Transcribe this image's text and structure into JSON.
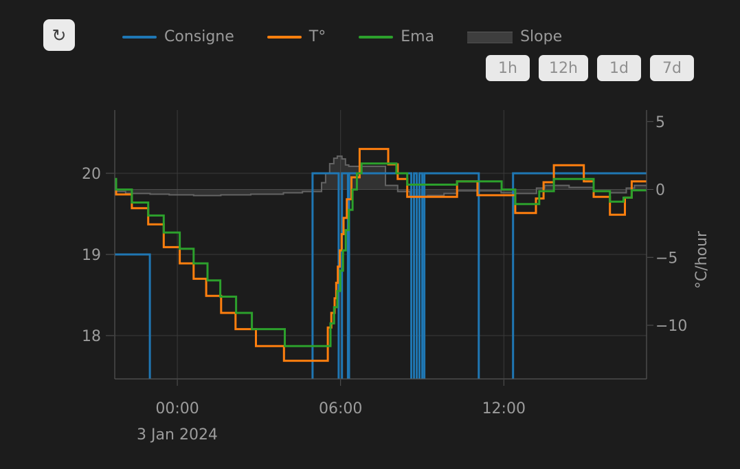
{
  "toolbar": {
    "refresh_icon": "↻"
  },
  "legend": {
    "items": [
      {
        "label": "Consigne",
        "color": "#1f77b4",
        "swatch": "line"
      },
      {
        "label": "T°",
        "color": "#ff7f0e",
        "swatch": "line"
      },
      {
        "label": "Ema",
        "color": "#2ca02c",
        "swatch": "line"
      },
      {
        "label": "Slope",
        "color": "#3e3e3e",
        "swatch": "area"
      }
    ]
  },
  "range_buttons": [
    "1h",
    "12h",
    "1d",
    "7d"
  ],
  "colors": {
    "background": "#1c1c1c",
    "gridline": "#3a3a3a",
    "axis_line": "#565656",
    "tick_text": "#9c9c9c",
    "zeroline": "#454545"
  },
  "chart_data": {
    "type": "line",
    "line_shape": "step-after",
    "x_axis": {
      "t_start": -2.3,
      "t_end": 17.25,
      "ticks": [
        {
          "t": 0,
          "label": "00:00"
        },
        {
          "t": 6,
          "label": "06:00"
        },
        {
          "t": 12,
          "label": "12:00"
        }
      ],
      "date_label": "3 Jan 2024"
    },
    "y_left": {
      "range": [
        17.45,
        20.78
      ],
      "ticks": [
        {
          "v": 20,
          "label": "20"
        },
        {
          "v": 19,
          "label": "19"
        },
        {
          "v": 18,
          "label": "18"
        }
      ]
    },
    "y_right": {
      "title": "°C/hour",
      "range": [
        -13.9,
        5.85
      ],
      "ticks": [
        {
          "v": 5,
          "label": "5"
        },
        {
          "v": 0,
          "label": "0"
        },
        {
          "v": -5,
          "label": "−5"
        },
        {
          "v": -10,
          "label": "−10"
        }
      ]
    },
    "series": [
      {
        "name": "Consigne",
        "color": "#1f77b4",
        "axis": "temp",
        "width": 3,
        "points": [
          [
            -2.3,
            19
          ],
          [
            -1.01,
            17.2
          ],
          [
            4.97,
            20
          ],
          [
            5.93,
            17.2
          ],
          [
            6.05,
            20
          ],
          [
            6.27,
            17.2
          ],
          [
            6.31,
            20
          ],
          [
            8.6,
            17.2
          ],
          [
            8.7,
            20
          ],
          [
            8.8,
            17.2
          ],
          [
            8.9,
            20
          ],
          [
            9.0,
            17.2
          ],
          [
            9.08,
            20
          ],
          [
            11.08,
            17.2
          ],
          [
            12.34,
            20
          ]
        ]
      },
      {
        "name": "T°",
        "color": "#ff7f0e",
        "axis": "temp",
        "width": 3,
        "points": [
          [
            -2.3,
            19.89
          ],
          [
            -2.25,
            19.74
          ],
          [
            -1.67,
            19.57
          ],
          [
            -1.07,
            19.37
          ],
          [
            -0.5,
            19.09
          ],
          [
            0.09,
            18.89
          ],
          [
            0.6,
            18.7
          ],
          [
            1.06,
            18.49
          ],
          [
            1.61,
            18.28
          ],
          [
            2.14,
            18.08
          ],
          [
            2.89,
            17.87
          ],
          [
            3.92,
            17.69
          ],
          [
            5.53,
            18.1
          ],
          [
            5.66,
            18.28
          ],
          [
            5.78,
            18.46
          ],
          [
            5.84,
            18.65
          ],
          [
            5.9,
            18.85
          ],
          [
            5.97,
            19.05
          ],
          [
            6.04,
            19.25
          ],
          [
            6.11,
            19.45
          ],
          [
            6.23,
            19.68
          ],
          [
            6.4,
            19.95
          ],
          [
            6.7,
            20.3
          ],
          [
            7.75,
            20.11
          ],
          [
            8.1,
            19.93
          ],
          [
            8.45,
            19.71
          ],
          [
            10.28,
            19.9
          ],
          [
            11.03,
            19.73
          ],
          [
            12.42,
            19.51
          ],
          [
            13.18,
            19.69
          ],
          [
            13.46,
            19.89
          ],
          [
            13.84,
            20.1
          ],
          [
            14.94,
            19.9
          ],
          [
            15.3,
            19.71
          ],
          [
            15.9,
            19.49
          ],
          [
            16.45,
            19.7
          ],
          [
            16.7,
            19.9
          ]
        ]
      },
      {
        "name": "Ema",
        "color": "#2ca02c",
        "axis": "temp",
        "width": 3,
        "points": [
          [
            -2.3,
            19.93
          ],
          [
            -2.25,
            19.8
          ],
          [
            -1.67,
            19.64
          ],
          [
            -1.07,
            19.48
          ],
          [
            -0.5,
            19.27
          ],
          [
            0.09,
            19.07
          ],
          [
            0.6,
            18.89
          ],
          [
            1.11,
            18.68
          ],
          [
            1.58,
            18.48
          ],
          [
            2.16,
            18.28
          ],
          [
            2.74,
            18.08
          ],
          [
            3.95,
            17.87
          ],
          [
            5.63,
            18.15
          ],
          [
            5.76,
            18.35
          ],
          [
            5.88,
            18.55
          ],
          [
            5.99,
            18.8
          ],
          [
            6.09,
            19.05
          ],
          [
            6.19,
            19.3
          ],
          [
            6.3,
            19.55
          ],
          [
            6.44,
            19.8
          ],
          [
            6.6,
            20.0
          ],
          [
            6.77,
            20.12
          ],
          [
            8.05,
            20.0
          ],
          [
            8.45,
            19.86
          ],
          [
            10.28,
            19.9
          ],
          [
            11.92,
            19.8
          ],
          [
            12.42,
            19.62
          ],
          [
            13.3,
            19.78
          ],
          [
            13.84,
            19.93
          ],
          [
            15.3,
            19.78
          ],
          [
            15.9,
            19.65
          ],
          [
            16.4,
            19.7
          ],
          [
            16.7,
            19.79
          ]
        ]
      },
      {
        "name": "Slope",
        "color": "#646464",
        "fill_color": "rgba(170,170,170,0.16)",
        "axis": "slope",
        "width": 2,
        "fill": "tozero",
        "points": [
          [
            -2.3,
            -0.15
          ],
          [
            -1.9,
            -0.3
          ],
          [
            -1.0,
            -0.35
          ],
          [
            -0.3,
            -0.4
          ],
          [
            0.6,
            -0.45
          ],
          [
            1.6,
            -0.4
          ],
          [
            2.7,
            -0.35
          ],
          [
            3.9,
            -0.25
          ],
          [
            4.6,
            -0.15
          ],
          [
            5.3,
            0.5
          ],
          [
            5.45,
            1.2
          ],
          [
            5.6,
            1.9
          ],
          [
            5.75,
            2.3
          ],
          [
            5.88,
            2.45
          ],
          [
            6.05,
            2.25
          ],
          [
            6.18,
            1.8
          ],
          [
            6.3,
            1.7
          ],
          [
            7.65,
            0.3
          ],
          [
            8.1,
            -0.15
          ],
          [
            8.55,
            -0.5
          ],
          [
            9.2,
            -0.45
          ],
          [
            9.8,
            -0.3
          ],
          [
            10.3,
            -0.1
          ],
          [
            11.9,
            -0.25
          ],
          [
            12.4,
            -0.3
          ],
          [
            13.2,
            0.1
          ],
          [
            13.5,
            0.3
          ],
          [
            14.4,
            0.15
          ],
          [
            15.3,
            -0.15
          ],
          [
            15.9,
            -0.25
          ],
          [
            16.5,
            0.1
          ],
          [
            16.8,
            0.3
          ]
        ]
      }
    ]
  }
}
